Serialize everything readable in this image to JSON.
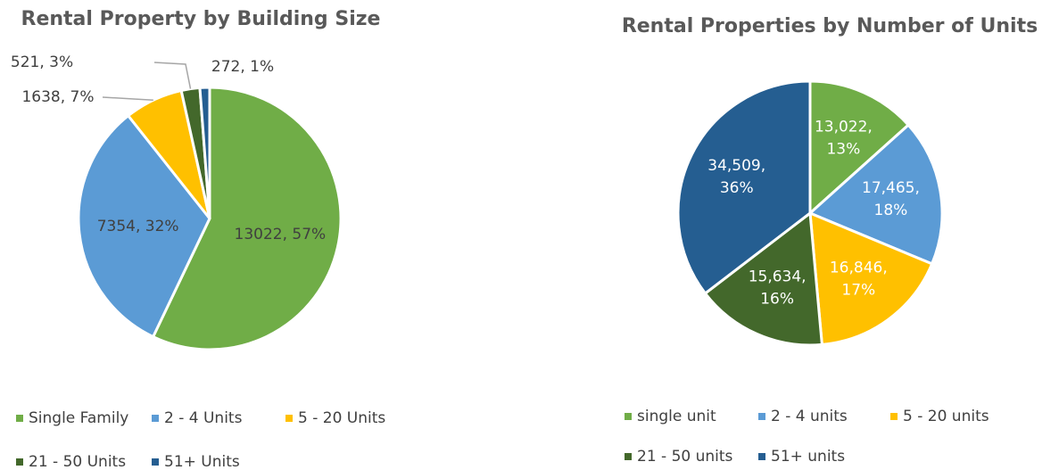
{
  "chart_data": [
    {
      "type": "pie",
      "title": "Rental Property by Building Size",
      "categories": [
        "Single Family",
        "2 - 4 Units",
        "5 - 20 Units",
        "21 - 50 Units",
        "51+ Units"
      ],
      "values": [
        13022,
        7354,
        1638,
        521,
        272
      ],
      "value_labels": [
        "13022, 57%",
        "7354, 32%",
        "1638, 7%",
        "521, 3%",
        "272, 1%"
      ],
      "colors": [
        "#70ad47",
        "#5b9bd5",
        "#ffc000",
        "#43682b",
        "#255e91"
      ]
    },
    {
      "type": "pie",
      "title": "Rental Properties by Number of Units",
      "categories": [
        "single unit",
        "2 - 4 units",
        "5 - 20 units",
        "21 - 50 units",
        "51+ units"
      ],
      "values": [
        13022,
        17465,
        16846,
        15634,
        34509
      ],
      "value_labels": [
        "13,022, 13%",
        "17,465, 18%",
        "16,846, 17%",
        "15,634, 16%",
        "34,509, 36%"
      ],
      "colors": [
        "#70ad47",
        "#5b9bd5",
        "#ffc000",
        "#43682b",
        "#255e91"
      ]
    }
  ]
}
